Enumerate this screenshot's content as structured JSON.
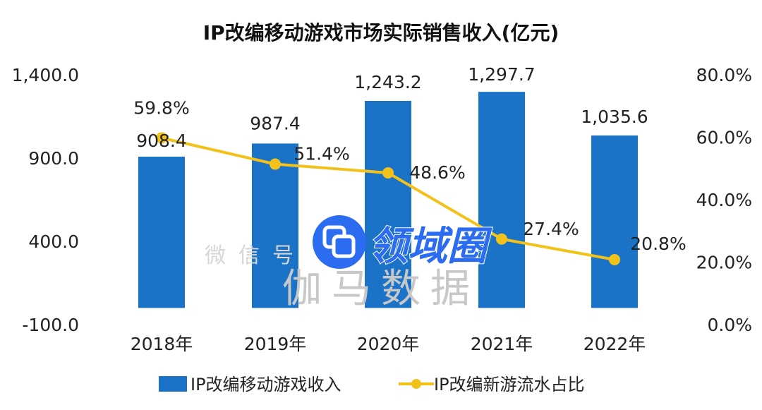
{
  "chart_data": {
    "type": "bar+line",
    "title": "IP改编移动游戏市场实际销售收入(亿元)",
    "categories": [
      "2018年",
      "2019年",
      "2020年",
      "2021年",
      "2022年"
    ],
    "series": [
      {
        "name": "IP改编移动游戏收入",
        "type": "bar",
        "axis": "left",
        "values": [
          908.4,
          987.4,
          1243.2,
          1297.7,
          1035.6
        ],
        "labels": [
          "908.4",
          "987.4",
          "1,243.2",
          "1,297.7",
          "1,035.6"
        ],
        "color": "#1a73c6"
      },
      {
        "name": "IP改编新游流水占比",
        "type": "line",
        "axis": "right",
        "values": [
          59.8,
          51.4,
          48.6,
          27.4,
          20.8
        ],
        "labels": [
          "59.8%",
          "51.4%",
          "48.6%",
          "27.4%",
          "20.8%"
        ],
        "color": "#f2c21b"
      }
    ],
    "left_axis": {
      "ylim": [
        -100,
        1400
      ],
      "ticks": [
        "-100.0",
        "400.0",
        "900.0",
        "1,400.0"
      ],
      "tick_values": [
        -100,
        400,
        900,
        1400
      ]
    },
    "right_axis": {
      "ylim": [
        0,
        80
      ],
      "ticks": [
        "0.0%",
        "20.0%",
        "40.0%",
        "60.0%",
        "80.0%"
      ],
      "tick_values": [
        0,
        20,
        40,
        60,
        80
      ]
    },
    "legend_position": "bottom",
    "grid": false
  },
  "watermark": {
    "main": "伽马数据",
    "sub": "微信号",
    "logo": "领域圈"
  }
}
